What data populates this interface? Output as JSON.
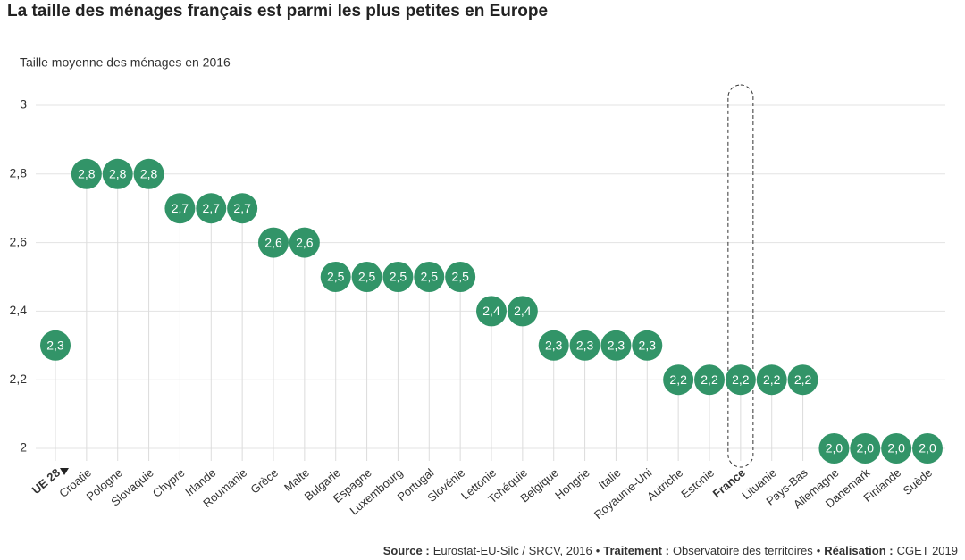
{
  "chart_data": {
    "type": "dot",
    "title": "La taille des ménages français est parmi les plus petites en Europe",
    "subtitle": "Taille moyenne des ménages en 2016",
    "categories": [
      "UE 28",
      "Croatie",
      "Pologne",
      "Slovaquie",
      "Chypre",
      "Irlande",
      "Roumanie",
      "Grèce",
      "Malte",
      "Bulgarie",
      "Espagne",
      "Luxembourg",
      "Portugal",
      "Slovénie",
      "Lettonie",
      "Tchéquie",
      "Belgique",
      "Hongrie",
      "Italie",
      "Royaume-Uni",
      "Autriche",
      "Estonie",
      "France",
      "Lituanie",
      "Pays-Bas",
      "Allemagne",
      "Danemark",
      "Finlande",
      "Suède"
    ],
    "values": [
      2.3,
      2.8,
      2.8,
      2.8,
      2.7,
      2.7,
      2.7,
      2.6,
      2.6,
      2.5,
      2.5,
      2.5,
      2.5,
      2.5,
      2.4,
      2.4,
      2.3,
      2.3,
      2.3,
      2.3,
      2.2,
      2.2,
      2.2,
      2.2,
      2.2,
      2.0,
      2.0,
      2.0,
      2.0
    ],
    "value_labels": [
      "2,3",
      "2,8",
      "2,8",
      "2,8",
      "2,7",
      "2,7",
      "2,7",
      "2,6",
      "2,6",
      "2,5",
      "2,5",
      "2,5",
      "2,5",
      "2,5",
      "2,4",
      "2,4",
      "2,3",
      "2,3",
      "2,3",
      "2,3",
      "2,2",
      "2,2",
      "2,2",
      "2,2",
      "2,2",
      "2,0",
      "2,0",
      "2,0",
      "2,0"
    ],
    "color": "#329468",
    "ylim": [
      2,
      3
    ],
    "yticks": [
      2,
      {
        "value": 2.2,
        "label": "2,2"
      },
      {
        "value": 2.4,
        "label": "2,4"
      },
      {
        "value": 2.6,
        "label": "2,6"
      },
      {
        "value": 2.8,
        "label": "2,8"
      },
      3
    ],
    "grid": true,
    "reference": 0,
    "highlight": 22,
    "footer": {
      "separator": "•",
      "items": [
        {
          "label": "Source :",
          "text": "Eurostat-EU-Silc / SRCV, 2016"
        },
        {
          "label": "Traitement :",
          "text": "Observatoire des territoires"
        },
        {
          "label": "Réalisation :",
          "text": "CGET 2019"
        }
      ]
    }
  }
}
